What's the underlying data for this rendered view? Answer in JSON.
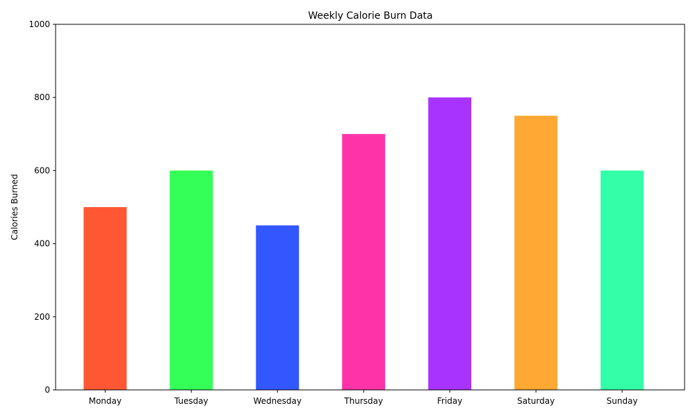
{
  "chart_data": {
    "type": "bar",
    "title": "Weekly Calorie Burn Data",
    "xlabel": "",
    "ylabel": "Calories Burned",
    "categories": [
      "Monday",
      "Tuesday",
      "Wednesday",
      "Thursday",
      "Friday",
      "Saturday",
      "Sunday"
    ],
    "values": [
      500,
      600,
      450,
      700,
      800,
      750,
      600
    ],
    "colors": [
      "#FF5733",
      "#33FF57",
      "#3357FF",
      "#FF33A8",
      "#A833FF",
      "#FFA833",
      "#33FFA8"
    ],
    "ylim": [
      0,
      1000
    ],
    "yticks": [
      0,
      200,
      400,
      600,
      800,
      1000
    ],
    "grid": false,
    "legend": "none"
  }
}
